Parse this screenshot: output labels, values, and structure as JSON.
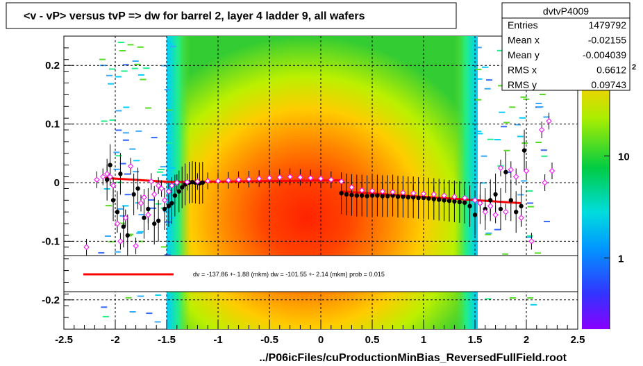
{
  "title": "<v - vP>       versus  tvP =>  dw for barrel 2, layer 4 ladder 9, all wafers",
  "xlabel": "../P06icFiles/cuProductionMinBias_ReversedFullField.root",
  "stats": {
    "name": "dvtvP4009",
    "rows": [
      {
        "label": "Entries",
        "value": "1479792"
      },
      {
        "label": "Mean x",
        "value": "-0.02155"
      },
      {
        "label": "Mean y",
        "value": "-0.004039"
      },
      {
        "label": "RMS x",
        "value": "0.6612"
      },
      {
        "label": "RMS y",
        "value": "0.09743"
      }
    ]
  },
  "legend": {
    "fit_text": "dv = -137.86 +-  1.88 (mkm) dw = -101.55 +-  2.14 (mkm) prob = 0.015",
    "fit_color": "#ff0000"
  },
  "colorbar": {
    "labels": [
      {
        "text": "10",
        "value": 10
      },
      {
        "text": "1",
        "value": 1
      }
    ],
    "top_label": "2"
  },
  "colors": {
    "fit_line": "#ff0000",
    "profile_black": "#000000",
    "profile_magenta": "#ff00ff"
  },
  "chart_data": {
    "type": "scatter",
    "title": "<v - vP>       versus  tvP =>  dw for barrel 2, layer 4 ladder 9, all wafers",
    "xlabel": "../P06icFiles/cuProductionMinBias_ReversedFullField.root",
    "ylabel": "",
    "xlim": [
      -2.5,
      2.5
    ],
    "ylim": [
      -0.25,
      0.25
    ],
    "x_ticks": [
      {
        "v": -2.5,
        "t": "-2.5"
      },
      {
        "v": -2,
        "t": "-2"
      },
      {
        "v": -1.5,
        "t": "-1.5"
      },
      {
        "v": -1,
        "t": "-1"
      },
      {
        "v": -0.5,
        "t": "-0.5"
      },
      {
        "v": 0,
        "t": "0"
      },
      {
        "v": 0.5,
        "t": "0.5"
      },
      {
        "v": 1,
        "t": "1"
      },
      {
        "v": 1.5,
        "t": "1.5"
      },
      {
        "v": 2,
        "t": "2"
      },
      {
        "v": 2.5,
        "t": "2.5"
      }
    ],
    "y_ticks": [
      {
        "v": 0.2,
        "t": "0.2"
      },
      {
        "v": 0.1,
        "t": "0.1"
      },
      {
        "v": 0,
        "t": "0"
      },
      {
        "v": -0.1,
        "t": "-0.1"
      },
      {
        "v": -0.2,
        "t": "-0.2"
      }
    ],
    "grid": true,
    "legend_position": "bottom-center",
    "series": [
      {
        "kind": "profile_black",
        "x": [
          -2.08,
          -2.05,
          -2.02,
          -1.98,
          -1.95,
          -1.92,
          -1.88,
          -1.82,
          -1.78,
          -1.72,
          -1.68,
          -1.62,
          -1.58,
          -1.52,
          -1.48,
          -1.45,
          -1.42,
          -1.38,
          -1.35,
          -1.32,
          -1.28,
          -1.25,
          -1.22,
          -1.18,
          -1.15,
          0.2,
          0.25,
          0.3,
          0.35,
          0.4,
          0.45,
          0.5,
          0.55,
          0.6,
          0.65,
          0.7,
          0.75,
          0.8,
          0.85,
          0.9,
          0.95,
          1.0,
          1.05,
          1.1,
          1.15,
          1.2,
          1.25,
          1.3,
          1.35,
          1.4,
          1.45,
          1.5,
          1.55,
          1.6,
          1.65,
          1.7,
          1.75,
          1.8,
          1.85,
          1.9,
          1.95,
          1.98
        ],
        "y": [
          0.005,
          0.03,
          -0.03,
          -0.05,
          0.015,
          -0.075,
          -0.09,
          -0.02,
          -0.01,
          -0.06,
          -0.045,
          -0.07,
          -0.065,
          -0.045,
          -0.04,
          -0.035,
          -0.022,
          -0.015,
          -0.008,
          -0.003,
          0,
          0.001,
          0,
          -0.001,
          0,
          -0.018,
          -0.02,
          -0.021,
          -0.022,
          -0.022,
          -0.023,
          -0.022,
          -0.022,
          -0.023,
          -0.023,
          -0.022,
          -0.024,
          -0.024,
          -0.025,
          -0.025,
          -0.026,
          -0.026,
          -0.027,
          -0.028,
          -0.029,
          -0.03,
          -0.031,
          -0.032,
          -0.033,
          -0.034,
          -0.04,
          -0.055,
          -0.035,
          -0.045,
          -0.03,
          -0.02,
          -0.045,
          0.018,
          -0.03,
          -0.05,
          -0.04,
          0.055
        ]
      },
      {
        "kind": "profile_magenta",
        "x": [
          -2.28,
          -2.18,
          -2.12,
          -2.08,
          -2.05,
          -2.02,
          -1.98,
          -1.95,
          -1.9,
          -1.85,
          -1.8,
          -1.75,
          -1.72,
          -1.68,
          -1.65,
          -1.62,
          -1.58,
          -1.55,
          -1.52,
          -1.48,
          -1.45,
          -1.4,
          -1.3,
          -1.2,
          -1.1,
          -1.0,
          -0.9,
          -0.8,
          -0.7,
          -0.6,
          -0.5,
          -0.4,
          -0.3,
          -0.2,
          -0.1,
          0,
          0.1,
          0.2,
          0.3,
          0.4,
          0.5,
          0.6,
          0.7,
          0.8,
          0.9,
          1.0,
          1.1,
          1.2,
          1.3,
          1.4,
          1.5,
          1.55,
          1.6,
          1.65,
          1.7,
          1.75,
          1.8,
          1.85,
          1.9,
          1.95,
          2.0,
          2.05,
          2.1,
          2.15,
          2.18,
          2.22,
          2.25
        ],
        "y": [
          -0.11,
          0.005,
          0.01,
          0.015,
          0.01,
          -0.005,
          -0.07,
          -0.1,
          -0.06,
          0.028,
          -0.108,
          -0.035,
          -0.025,
          -0.055,
          0.002,
          -0.02,
          -0.005,
          -0.01,
          -0.03,
          -0.015,
          -0.005,
          0,
          0.001,
          0.002,
          0.003,
          0.003,
          0.004,
          0.005,
          0.006,
          0.007,
          0.008,
          0.009,
          0.01,
          0.009,
          0.008,
          0.007,
          0.005,
          0.002,
          -0.008,
          -0.013,
          -0.014,
          -0.015,
          -0.016,
          -0.017,
          -0.018,
          -0.019,
          -0.02,
          -0.022,
          -0.024,
          -0.026,
          -0.03,
          -0.035,
          -0.05,
          -0.04,
          -0.055,
          0.025,
          -0.05,
          0.022,
          0.01,
          -0.06,
          0.02,
          -0.1,
          -0.14,
          0.09,
          0,
          0.105,
          0.02
        ]
      },
      {
        "kind": "fit_line",
        "segments": [
          {
            "x": [
              -2.1,
              -1.45
            ],
            "y": [
              0.008,
              0.001
            ]
          },
          {
            "x": [
              -1.45,
              0.2
            ],
            "y": [
              0.001,
              0.004
            ]
          },
          {
            "x": [
              0.2,
              1.95
            ],
            "y": [
              -0.015,
              -0.035
            ]
          }
        ]
      }
    ]
  }
}
